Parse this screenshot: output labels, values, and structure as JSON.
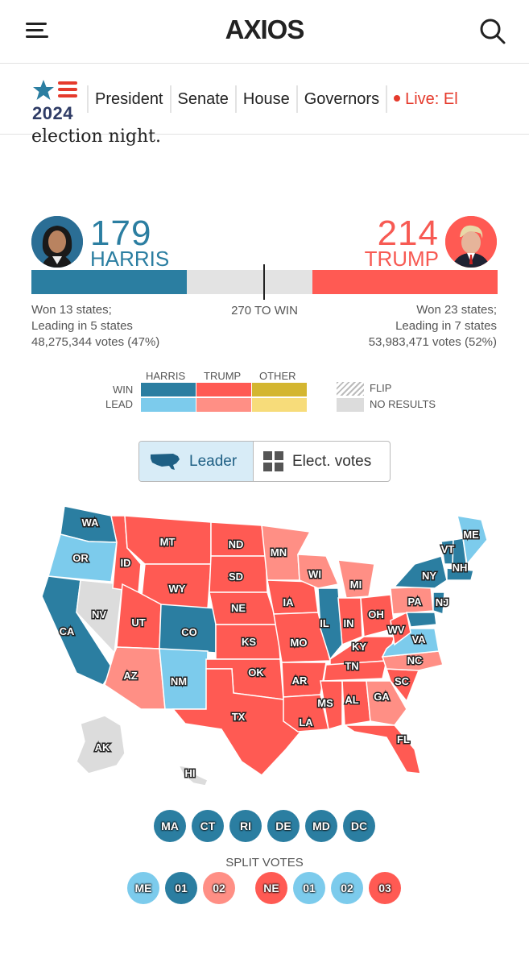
{
  "header": {
    "brand": "AXIOS"
  },
  "nav": {
    "year": "2024",
    "items": [
      "President",
      "Senate",
      "House",
      "Governors"
    ],
    "live_label": "Live: El"
  },
  "intro_text": "election night.",
  "harris": {
    "electoral_votes": "179",
    "name": "HARRIS",
    "won": "Won 13 states;",
    "leading": "Leading in 5 states",
    "votes": "48,275,344 votes (47%)",
    "color": "#2b7ea1"
  },
  "trump": {
    "electoral_votes": "214",
    "name": "TRUMP",
    "won": "Won 23 states;",
    "leading": "Leading in 7 states",
    "votes": "53,983,471 votes (52%)",
    "color": "#ff5a53"
  },
  "to_win": "270 TO WIN",
  "legend": {
    "columns": [
      "HARRIS",
      "TRUMP",
      "OTHER"
    ],
    "rows": [
      "WIN",
      "LEAD"
    ],
    "flip": "FLIP",
    "no_results": "NO RESULTS",
    "colors": {
      "harris_win": "#2b7ea1",
      "harris_lead": "#7ccbec",
      "trump_win": "#ff5a53",
      "trump_lead": "#ff8f85",
      "other_win": "#d4b630",
      "other_lead": "#f7dc7a",
      "no_results": "#dcdcdc"
    }
  },
  "toggle": {
    "leader": "Leader",
    "electoral": "Elect. votes"
  },
  "map_labels": [
    "WA",
    "OR",
    "CA",
    "NV",
    "ID",
    "MT",
    "WY",
    "UT",
    "AZ",
    "CO",
    "NM",
    "ND",
    "SD",
    "NE",
    "KS",
    "OK",
    "TX",
    "MN",
    "IA",
    "MO",
    "AR",
    "LA",
    "WI",
    "IL",
    "MI",
    "IN",
    "OH",
    "KY",
    "TN",
    "MS",
    "AL",
    "GA",
    "FL",
    "SC",
    "NC",
    "VA",
    "WV",
    "PA",
    "NY",
    "VT",
    "NH",
    "ME",
    "NJ",
    "AK",
    "HI"
  ],
  "small_states": [
    "MA",
    "CT",
    "RI",
    "DE",
    "MD",
    "DC"
  ],
  "split_votes": {
    "title": "SPLIT VOTES",
    "me": [
      "ME",
      "01",
      "02"
    ],
    "ne": [
      "NE",
      "01",
      "02",
      "03"
    ]
  }
}
